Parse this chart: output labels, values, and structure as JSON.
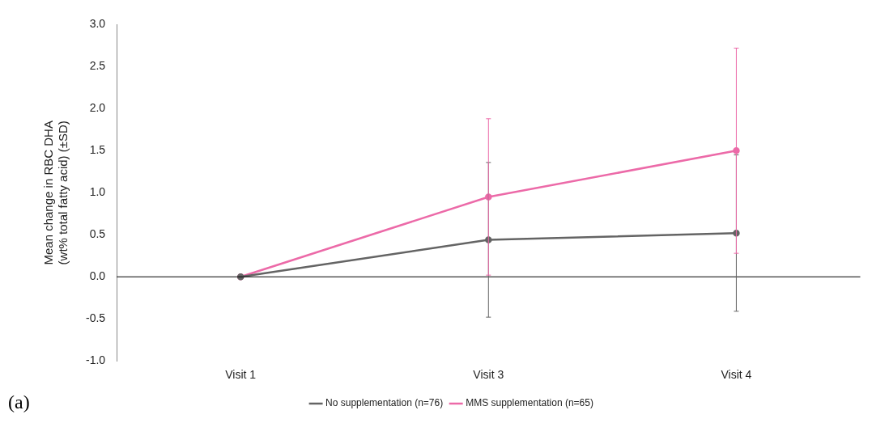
{
  "chart_data": {
    "type": "line",
    "ylabel": "Mean change in RBC DHA (wt% total fatty acid) (±SD)",
    "categories": [
      "Visit 1",
      "Visit 3",
      "Visit 4"
    ],
    "series": [
      {
        "name": "No supplementation (n=76)",
        "color": "#646464",
        "values": [
          0,
          0.44,
          0.52
        ],
        "errors": [
          null,
          0.92,
          0.93
        ]
      },
      {
        "name": "MMS supplementation (n=65)",
        "color": "#ec6aa8",
        "values": [
          0,
          0.95,
          1.5
        ],
        "errors": [
          null,
          0.93,
          1.22
        ]
      }
    ],
    "ylim": [
      -1,
      3
    ],
    "yticks": [
      {
        "value": -1,
        "label": "-1.0"
      },
      -0.5,
      {
        "value": 0,
        "label": "0.0"
      },
      0.5,
      {
        "value": 1,
        "label": "1.0"
      },
      1.5,
      {
        "value": 2,
        "label": "2.0"
      },
      2.5,
      {
        "value": 3,
        "label": "3.0"
      }
    ],
    "marker": "circle",
    "line_style": "solid",
    "legend": "bottom",
    "ref_lines": [
      {
        "axis": "y",
        "value": 0,
        "color": "#000000"
      }
    ],
    "annotations": [
      "(a)"
    ]
  }
}
